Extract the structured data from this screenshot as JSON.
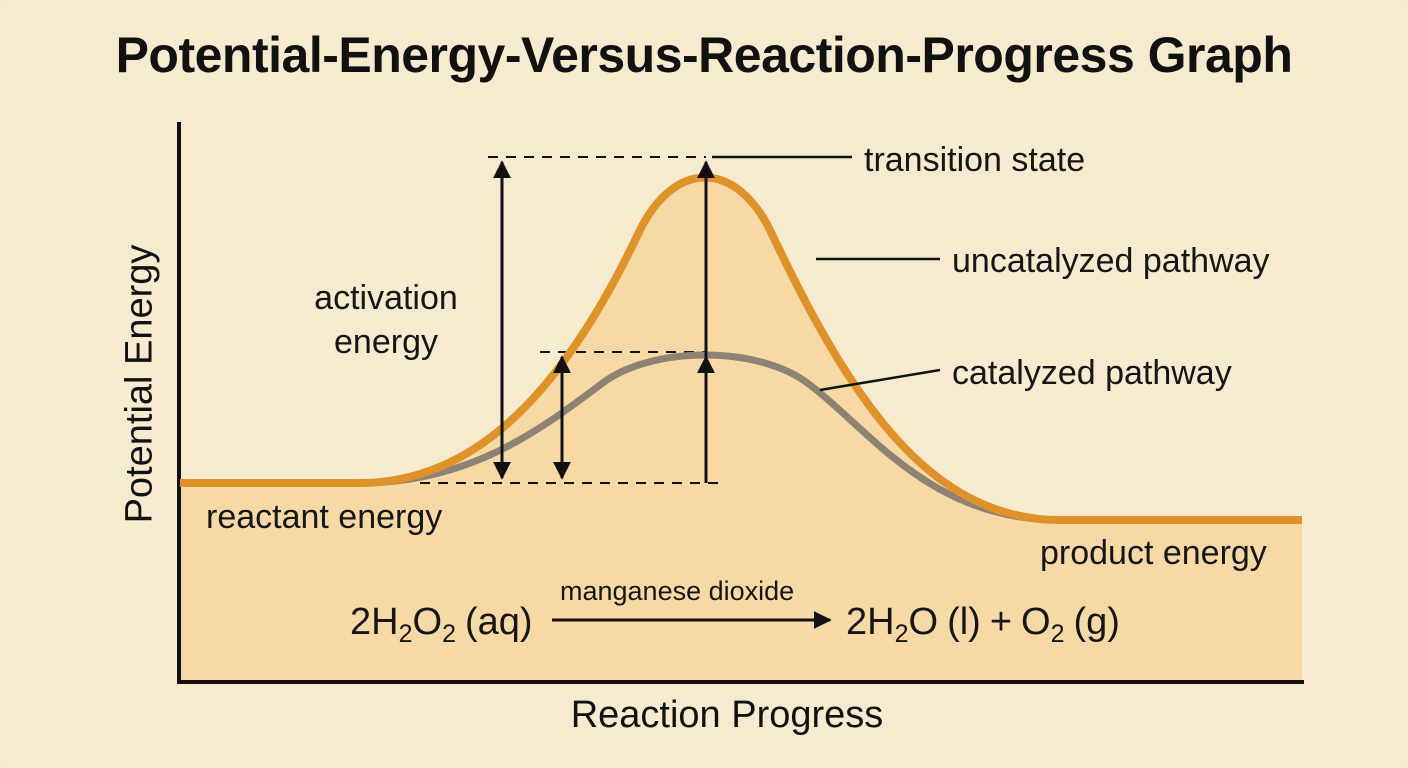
{
  "title": "Potential-Energy-Versus-Reaction-Progress Graph",
  "axes": {
    "x_label": "Reaction Progress",
    "y_label": "Potential Energy"
  },
  "labels": {
    "transition_state": "transition state",
    "uncatalyzed_pathway": "uncatalyzed pathway",
    "catalyzed_pathway": "catalyzed pathway",
    "activation_energy_line1": "activation",
    "activation_energy_line2": "energy",
    "reactant_energy": "reactant energy",
    "product_energy": "product energy"
  },
  "equation": {
    "catalyst": "manganese dioxide",
    "reactant": {
      "coef": "2",
      "el1": "H",
      "sub1": "2",
      "el2": "O",
      "sub2": "2",
      "state": "(aq)"
    },
    "product1": {
      "coef": "2",
      "el1": "H",
      "sub1": "2",
      "el2": "O",
      "state": "(l)"
    },
    "plus": "+",
    "product2": {
      "el": "O",
      "sub": "2",
      "state": "(g)"
    }
  },
  "colors": {
    "background": "#f7ebcf",
    "fill": "#f7d9a6",
    "uncatalyzed": "#e0922a",
    "catalyzed": "#8d8273",
    "ink": "#111111"
  }
}
